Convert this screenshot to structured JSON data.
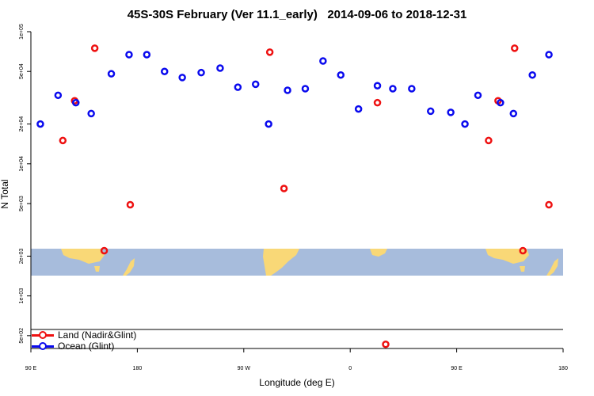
{
  "chart_data": {
    "type": "scatter",
    "title": "45S-30S February (Ver 11.1_early)   2014-09-06 to 2018-12-31",
    "xlabel": "Longitude (deg E)",
    "ylabel": "N Total",
    "x_unit": "deg E, continuous from 90 to 540 (90E wraps once around the globe to 180)",
    "xlim": [
      90,
      540
    ],
    "ylim": [
      400,
      100000
    ],
    "y_scale": "log",
    "x_ticks": [
      {
        "value": 90,
        "label": "90 E"
      },
      {
        "value": 180,
        "label": "180"
      },
      {
        "value": 270,
        "label": "90 W"
      },
      {
        "value": 360,
        "label": "0"
      },
      {
        "value": 450,
        "label": "90 E"
      },
      {
        "value": 540,
        "label": "180"
      }
    ],
    "y_ticks": [
      {
        "value": 500,
        "label": "5e+02"
      },
      {
        "value": 1000,
        "label": "1e+03"
      },
      {
        "value": 2000,
        "label": "2e+03"
      },
      {
        "value": 5000,
        "label": "5e+03"
      },
      {
        "value": 10000,
        "label": "1e+04"
      },
      {
        "value": 20000,
        "label": "2e+04"
      },
      {
        "value": 50000,
        "label": "5e+04"
      },
      {
        "value": 100000,
        "label": "1e+05"
      }
    ],
    "legend_placement": "bottom-left",
    "map_band": {
      "ocean_color": "#a7bcdc",
      "land_color": "#f9d877"
    },
    "series": [
      {
        "name": "Land (Nadir&Glint)",
        "color": "#ee1111",
        "points": [
          [
            117,
            15000
          ],
          [
            127,
            30000
          ],
          [
            144,
            75000
          ],
          [
            152,
            2200
          ],
          [
            174,
            4900
          ],
          [
            292,
            70000
          ],
          [
            304,
            6500
          ],
          [
            383,
            29000
          ],
          [
            390,
            430
          ],
          [
            477,
            15000
          ],
          [
            485,
            30000
          ],
          [
            499,
            75000
          ],
          [
            506,
            2200
          ],
          [
            528,
            4900
          ]
        ]
      },
      {
        "name": "Ocean (Glint)",
        "color": "#0a0aee",
        "points": [
          [
            98,
            20000
          ],
          [
            113,
            33000
          ],
          [
            128,
            29000
          ],
          [
            141,
            24000
          ],
          [
            158,
            48000
          ],
          [
            173,
            67000
          ],
          [
            188,
            67000
          ],
          [
            203,
            50000
          ],
          [
            218,
            45000
          ],
          [
            234,
            49000
          ],
          [
            250,
            53000
          ],
          [
            265,
            38000
          ],
          [
            280,
            40000
          ],
          [
            291,
            20000
          ],
          [
            307,
            36000
          ],
          [
            322,
            37000
          ],
          [
            337,
            60000
          ],
          [
            352,
            47000
          ],
          [
            367,
            26000
          ],
          [
            383,
            39000
          ],
          [
            396,
            37000
          ],
          [
            412,
            37000
          ],
          [
            428,
            25000
          ],
          [
            445,
            24500
          ],
          [
            457,
            20000
          ],
          [
            468,
            33000
          ],
          [
            487,
            29000
          ],
          [
            498,
            24000
          ],
          [
            514,
            47000
          ],
          [
            528,
            67000
          ]
        ]
      }
    ]
  }
}
